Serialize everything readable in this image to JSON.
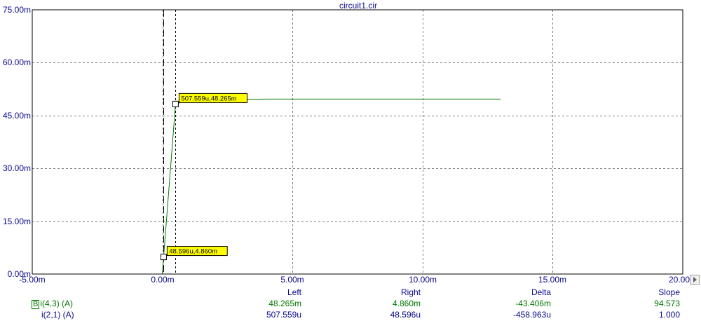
{
  "chart_data": {
    "type": "line",
    "title": "circuit1.cir",
    "xlim": [
      -0.005,
      0.02
    ],
    "ylim": [
      0,
      0.075
    ],
    "x_ticks": [
      {
        "v": -0.005,
        "label": "-5.00m"
      },
      {
        "v": 0,
        "label": "0.00m"
      },
      {
        "v": 0.005,
        "label": "5.00m"
      },
      {
        "v": 0.01,
        "label": "10.00m"
      },
      {
        "v": 0.015,
        "label": "15.00m"
      },
      {
        "v": 0.02,
        "label": "20.00m"
      }
    ],
    "y_ticks": [
      {
        "v": 0,
        "label": "0.00m"
      },
      {
        "v": 0.015,
        "label": "15.00m"
      },
      {
        "v": 0.03,
        "label": "30.00m"
      },
      {
        "v": 0.045,
        "label": "45.00m"
      },
      {
        "v": 0.06,
        "label": "60.00m"
      },
      {
        "v": 0.075,
        "label": "75.00m"
      }
    ],
    "grid": true,
    "series": [
      {
        "name": "i(4,3) (A)",
        "color": "#007a00",
        "x": [
          0,
          4.8596e-05,
          0.000507559,
          0.001,
          0.002,
          0.003,
          0.004,
          0.006,
          0.008,
          0.01,
          0.013
        ],
        "y": [
          0,
          0.00486,
          0.048265,
          0.0493,
          0.0495,
          0.0496,
          0.04965,
          0.04965,
          0.04965,
          0.04965,
          0.04965
        ]
      }
    ],
    "cursors": [
      {
        "x": 4.8596e-05,
        "y": 0.00486,
        "label": "48.596u,4.860m"
      },
      {
        "x": 0.000507559,
        "y": 0.048265,
        "label": "507.559u,48.265m"
      }
    ]
  },
  "readout": {
    "headers": {
      "left": "Left",
      "right": "Right",
      "delta": "Delta",
      "slope": "Slope"
    },
    "rows": [
      {
        "sel": "B",
        "name": "i(4,3) (A)",
        "left": "48.265m",
        "right": "4.860m",
        "delta": "-43.406m",
        "slope": "94.573"
      },
      {
        "name": "i(2,1) (A)",
        "left": "507.559u",
        "right": "48.596u",
        "delta": "-458.963u",
        "slope": "1.000"
      }
    ]
  },
  "colors": {
    "axis_text": "#0a0a8c",
    "trace": "#007a00",
    "tag_bg": "#ffff00",
    "grid": "#808080"
  }
}
